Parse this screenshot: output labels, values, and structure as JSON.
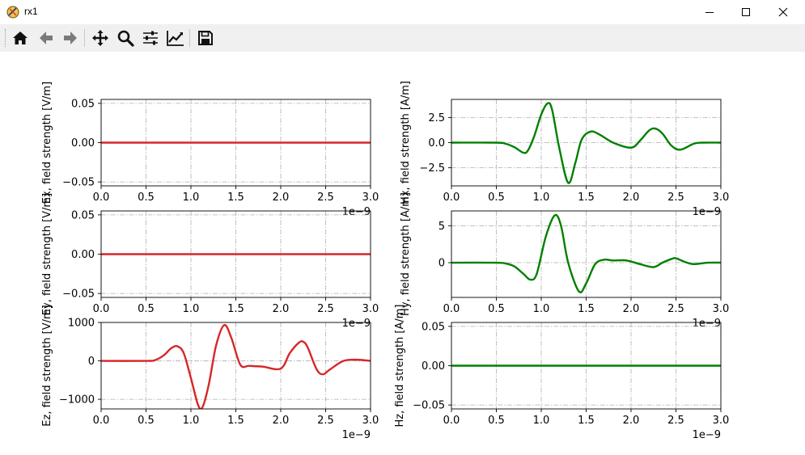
{
  "window": {
    "title": "rx1"
  },
  "toolbar": {
    "buttons": [
      {
        "icon": "home-icon"
      },
      {
        "icon": "back-arrow-icon"
      },
      {
        "icon": "forward-arrow-icon"
      },
      {
        "icon": "pan-icon"
      },
      {
        "icon": "zoom-icon"
      },
      {
        "icon": "configure-subplots-icon"
      },
      {
        "icon": "edit-axis-icon"
      },
      {
        "icon": "save-icon"
      }
    ]
  },
  "chart_data": [
    {
      "type": "line",
      "title": "",
      "ylabel": "Ex, field strength [V/m]",
      "color": "#d62728",
      "xlim": [
        0,
        3.0
      ],
      "ylim": [
        -0.055,
        0.055
      ],
      "xticks": [
        "0.0",
        "0.5",
        "1.0",
        "1.5",
        "2.0",
        "2.5",
        "3.0"
      ],
      "yticks": [
        {
          "v": 0.05,
          "l": "0.05"
        },
        {
          "v": 0.0,
          "l": "0.00"
        },
        {
          "v": -0.05,
          "l": "−0.05"
        }
      ],
      "x_offset_label": "1e−9",
      "grid": true,
      "x": [
        0.0,
        3.0
      ],
      "y": [
        0.0,
        0.0
      ]
    },
    {
      "type": "line",
      "title": "",
      "ylabel": "Hx, field strength [A/m]",
      "color": "#008000",
      "xlim": [
        0,
        3.0
      ],
      "ylim": [
        -4.3,
        4.3
      ],
      "xticks": [
        "0.0",
        "0.5",
        "1.0",
        "1.5",
        "2.0",
        "2.5",
        "3.0"
      ],
      "yticks": [
        {
          "v": 2.5,
          "l": "2.5"
        },
        {
          "v": 0.0,
          "l": "0.0"
        },
        {
          "v": -2.5,
          "l": "−2.5"
        }
      ],
      "x_offset_label": "1e−9",
      "grid": true,
      "x": [
        0.0,
        0.5,
        0.6,
        0.7,
        0.8,
        0.85,
        0.92,
        1.0,
        1.07,
        1.12,
        1.2,
        1.3,
        1.38,
        1.45,
        1.55,
        1.65,
        1.8,
        2.0,
        2.1,
        2.2,
        2.27,
        2.35,
        2.45,
        2.55,
        2.7,
        2.8,
        3.0
      ],
      "y": [
        0.0,
        0.0,
        -0.1,
        -0.45,
        -1.0,
        -0.8,
        0.6,
        2.8,
        3.9,
        3.3,
        -0.5,
        -4.0,
        -2.0,
        0.3,
        1.1,
        0.8,
        0.0,
        -0.5,
        0.2,
        1.2,
        1.4,
        0.9,
        -0.3,
        -0.7,
        -0.1,
        0.0,
        0.0
      ]
    },
    {
      "type": "line",
      "title": "",
      "ylabel": "Ey, field strength [V/m]",
      "color": "#d62728",
      "xlim": [
        0,
        3.0
      ],
      "ylim": [
        -0.055,
        0.055
      ],
      "xticks": [
        "0.0",
        "0.5",
        "1.0",
        "1.5",
        "2.0",
        "2.5",
        "3.0"
      ],
      "yticks": [
        {
          "v": 0.05,
          "l": "0.05"
        },
        {
          "v": 0.0,
          "l": "0.00"
        },
        {
          "v": -0.05,
          "l": "−0.05"
        }
      ],
      "x_offset_label": "1e−9",
      "grid": true,
      "x": [
        0.0,
        3.0
      ],
      "y": [
        0.0,
        0.0
      ]
    },
    {
      "type": "line",
      "title": "",
      "ylabel": "Hy, field strength [A/m]",
      "color": "#008000",
      "xlim": [
        0,
        3.0
      ],
      "ylim": [
        -4.7,
        7.0
      ],
      "xticks": [
        "0.0",
        "0.5",
        "1.0",
        "1.5",
        "2.0",
        "2.5",
        "3.0"
      ],
      "yticks": [
        {
          "v": 5,
          "l": "5"
        },
        {
          "v": 0,
          "l": "0"
        }
      ],
      "x_offset_label": "1e−9",
      "grid": true,
      "x": [
        0.0,
        0.5,
        0.6,
        0.7,
        0.8,
        0.88,
        0.95,
        1.05,
        1.15,
        1.22,
        1.3,
        1.42,
        1.5,
        1.6,
        1.7,
        1.8,
        1.95,
        2.1,
        2.25,
        2.35,
        2.45,
        2.5,
        2.6,
        2.7,
        2.85,
        3.0
      ],
      "y": [
        0.0,
        0.0,
        -0.1,
        -0.5,
        -1.5,
        -2.3,
        -1.5,
        3.5,
        6.4,
        5.0,
        0.0,
        -3.9,
        -2.8,
        -0.2,
        0.4,
        0.3,
        0.3,
        -0.2,
        -0.6,
        0.0,
        0.5,
        0.6,
        0.1,
        -0.2,
        0.0,
        0.0
      ]
    },
    {
      "type": "line",
      "title": "",
      "ylabel": "Ez, field strength [V/m]",
      "color": "#d62728",
      "xlim": [
        0,
        3.0
      ],
      "ylim": [
        -1250,
        1000
      ],
      "xticks": [
        "0.0",
        "0.5",
        "1.0",
        "1.5",
        "2.0",
        "2.5",
        "3.0"
      ],
      "yticks": [
        {
          "v": 1000,
          "l": "1000"
        },
        {
          "v": 0,
          "l": "0"
        },
        {
          "v": -1000,
          "l": "−1000"
        }
      ],
      "x_offset_label": "1e−9",
      "grid": true,
      "x": [
        0.0,
        0.5,
        0.6,
        0.7,
        0.78,
        0.85,
        0.92,
        1.0,
        1.08,
        1.13,
        1.2,
        1.28,
        1.37,
        1.45,
        1.55,
        1.65,
        1.8,
        2.0,
        2.1,
        2.2,
        2.25,
        2.3,
        2.4,
        2.47,
        2.55,
        2.7,
        2.85,
        3.0
      ],
      "y": [
        0.0,
        0.0,
        20,
        150,
        330,
        380,
        200,
        -450,
        -1150,
        -1200,
        -600,
        400,
        930,
        600,
        -100,
        -130,
        -150,
        -200,
        200,
        470,
        500,
        350,
        -220,
        -350,
        -220,
        0,
        30,
        0
      ]
    },
    {
      "type": "line",
      "title": "",
      "ylabel": "Hz, field strength [A/m]",
      "color": "#008000",
      "xlim": [
        0,
        3.0
      ],
      "ylim": [
        -0.055,
        0.055
      ],
      "xticks": [
        "0.0",
        "0.5",
        "1.0",
        "1.5",
        "2.0",
        "2.5",
        "3.0"
      ],
      "yticks": [
        {
          "v": 0.05,
          "l": "0.05"
        },
        {
          "v": 0.0,
          "l": "0.00"
        },
        {
          "v": -0.05,
          "l": "−0.05"
        }
      ],
      "x_offset_label": "1e−9",
      "grid": true,
      "x": [
        0.0,
        3.0
      ],
      "y": [
        0.0,
        0.0
      ]
    }
  ]
}
